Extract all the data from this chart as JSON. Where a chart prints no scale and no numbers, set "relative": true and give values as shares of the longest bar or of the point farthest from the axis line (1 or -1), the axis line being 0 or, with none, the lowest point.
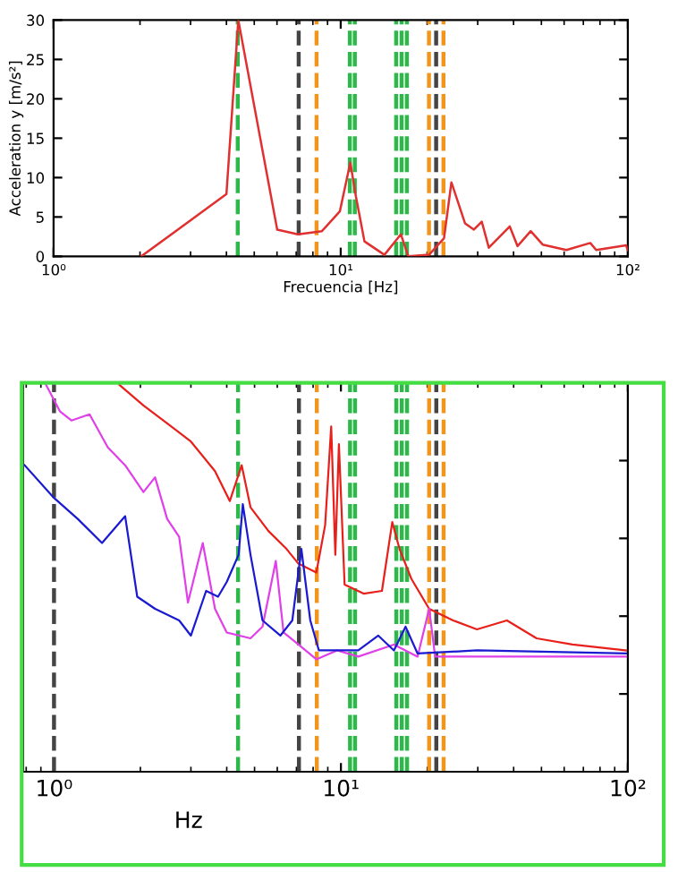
{
  "chart_data": [
    {
      "type": "line",
      "xlabel": "Frecuencia [Hz]",
      "ylabel": "Acceleration y [m/s²]",
      "log": "x",
      "grid": false,
      "line_style": "solid",
      "xlim": [
        1,
        100
      ],
      "ylim": [
        0,
        30
      ],
      "xticks": [
        {
          "value": 1,
          "label": "10⁰"
        },
        {
          "value": 10,
          "label": "10¹"
        },
        {
          "value": 100,
          "label": "10²"
        }
      ],
      "yticks": [
        0,
        5,
        10,
        15,
        20,
        25,
        30
      ],
      "series": [
        {
          "color": "#e03030",
          "x": [
            2.02,
            4.0,
            4.4,
            6.01,
            7.1,
            8.6,
            9.93,
            10.8,
            11.3,
            12.1,
            14.2,
            16.2,
            17.2,
            20.3,
            22.9,
            24.3,
            27.1,
            29.1,
            31.0,
            32.8,
            38.8,
            41.3,
            45.9,
            50.5,
            61.1,
            74.0,
            77.6,
            98.6,
            100
          ],
          "values": [
            0,
            7.9,
            30,
            3.4,
            2.8,
            3.2,
            5.7,
            11.9,
            7.6,
            1.9,
            0.2,
            2.8,
            0,
            0.2,
            2.3,
            9.4,
            4.2,
            3.4,
            4.4,
            1.1,
            3.8,
            1.3,
            3.2,
            1.5,
            0.8,
            1.7,
            0.8,
            1.4,
            0.8
          ]
        }
      ],
      "ref_lines": [
        {
          "axis": "x",
          "value": 4.38,
          "color": "#2db84a",
          "line_style": "dashed"
        },
        {
          "axis": "x",
          "value": 7.14,
          "color": "#444444",
          "line_style": "dashed"
        },
        {
          "axis": "x",
          "value": 8.24,
          "color": "#f0961e",
          "line_style": "dashed"
        },
        {
          "axis": "x",
          "value": 10.76,
          "color": "#2db84a",
          "line_style": "dashed"
        },
        {
          "axis": "x",
          "value": 11.2,
          "color": "#2db84a",
          "line_style": "dashed"
        },
        {
          "axis": "x",
          "value": 15.6,
          "color": "#2db84a",
          "line_style": "dashed"
        },
        {
          "axis": "x",
          "value": 16.3,
          "color": "#2db84a",
          "line_style": "dashed"
        },
        {
          "axis": "x",
          "value": 17.0,
          "color": "#2db84a",
          "line_style": "dashed"
        },
        {
          "axis": "x",
          "value": 20.3,
          "color": "#f0961e",
          "line_style": "dashed"
        },
        {
          "axis": "x",
          "value": 21.5,
          "color": "#444444",
          "line_style": "dashed"
        },
        {
          "axis": "x",
          "value": 22.8,
          "color": "#f0961e",
          "line_style": "dashed"
        }
      ]
    },
    {
      "type": "line",
      "xlabel": "Hz",
      "log": "x",
      "grid": false,
      "relative": true,
      "tick_labels": "x",
      "line_style": "solid",
      "xlim": [
        0.78,
        100
      ],
      "xticks": [
        {
          "value": 1,
          "label": "10⁰"
        },
        {
          "value": 10,
          "label": "10¹"
        },
        {
          "value": 100,
          "label": "10²"
        }
      ],
      "series": [
        {
          "color": "#e8201c",
          "x": [
            1.69,
            2.05,
            2.48,
            3.0,
            3.64,
            4.1,
            4.51,
            4.84,
            5.59,
            6.46,
            7.11,
            8.21,
            8.81,
            9.25,
            9.56,
            9.84,
            10.3,
            12.0,
            13.9,
            15.1,
            16.0,
            17.6,
            20.3,
            24.6,
            29.8,
            37.9,
            48.1,
            64.1,
            98.6
          ],
          "values": [
            0.995,
            0.942,
            0.896,
            0.849,
            0.773,
            0.696,
            0.788,
            0.68,
            0.619,
            0.573,
            0.535,
            0.512,
            0.634,
            0.888,
            0.558,
            0.842,
            0.481,
            0.458,
            0.465,
            0.642,
            0.573,
            0.496,
            0.419,
            0.389,
            0.366,
            0.389,
            0.343,
            0.327,
            0.312
          ]
        },
        {
          "color": "#e040e8",
          "x": [
            0.93,
            1.05,
            1.15,
            1.33,
            1.54,
            1.77,
            2.05,
            2.25,
            2.48,
            2.73,
            2.93,
            3.3,
            3.64,
            4.0,
            4.84,
            5.33,
            5.93,
            6.31,
            7.11,
            8.21,
            9.7,
            11.5,
            15.3,
            18.5,
            20.3,
            21.3,
            37.9,
            98.6
          ],
          "values": [
            1.0,
            0.926,
            0.903,
            0.919,
            0.834,
            0.788,
            0.719,
            0.757,
            0.65,
            0.604,
            0.435,
            0.588,
            0.419,
            0.358,
            0.343,
            0.373,
            0.542,
            0.358,
            0.327,
            0.289,
            0.312,
            0.296,
            0.327,
            0.296,
            0.419,
            0.296,
            0.296,
            0.296
          ]
        },
        {
          "color": "#1a1ad0",
          "x": [
            0.79,
            1.0,
            1.21,
            1.47,
            1.77,
            1.95,
            2.25,
            2.73,
            3.0,
            3.39,
            3.73,
            4.0,
            4.4,
            4.55,
            4.84,
            5.33,
            6.15,
            6.77,
            7.28,
            7.82,
            8.38,
            11.5,
            13.5,
            15.3,
            16.8,
            18.5,
            29.8,
            98.6
          ],
          "values": [
            0.788,
            0.704,
            0.65,
            0.588,
            0.657,
            0.45,
            0.419,
            0.389,
            0.35,
            0.465,
            0.45,
            0.488,
            0.558,
            0.688,
            0.558,
            0.389,
            0.35,
            0.389,
            0.573,
            0.389,
            0.312,
            0.312,
            0.35,
            0.312,
            0.373,
            0.304,
            0.312,
            0.304
          ]
        }
      ],
      "ref_lines": [
        {
          "axis": "x",
          "value": 1,
          "color": "#444444",
          "line_style": "dashed"
        },
        {
          "axis": "x",
          "value": 4.38,
          "color": "#2db84a",
          "line_style": "dashed"
        },
        {
          "axis": "x",
          "value": 7.14,
          "color": "#444444",
          "line_style": "dashed"
        },
        {
          "axis": "x",
          "value": 8.24,
          "color": "#f0961e",
          "line_style": "dashed"
        },
        {
          "axis": "x",
          "value": 10.76,
          "color": "#2db84a",
          "line_style": "dashed"
        },
        {
          "axis": "x",
          "value": 11.2,
          "color": "#2db84a",
          "line_style": "dashed"
        },
        {
          "axis": "x",
          "value": 15.6,
          "color": "#2db84a",
          "line_style": "dashed"
        },
        {
          "axis": "x",
          "value": 16.3,
          "color": "#2db84a",
          "line_style": "dashed"
        },
        {
          "axis": "x",
          "value": 17.0,
          "color": "#2db84a",
          "line_style": "dashed"
        },
        {
          "axis": "x",
          "value": 20.3,
          "color": "#f0961e",
          "line_style": "dashed"
        },
        {
          "axis": "x",
          "value": 21.5,
          "color": "#444444",
          "line_style": "dashed"
        },
        {
          "axis": "x",
          "value": 22.8,
          "color": "#f0961e",
          "line_style": "dashed"
        }
      ]
    }
  ]
}
